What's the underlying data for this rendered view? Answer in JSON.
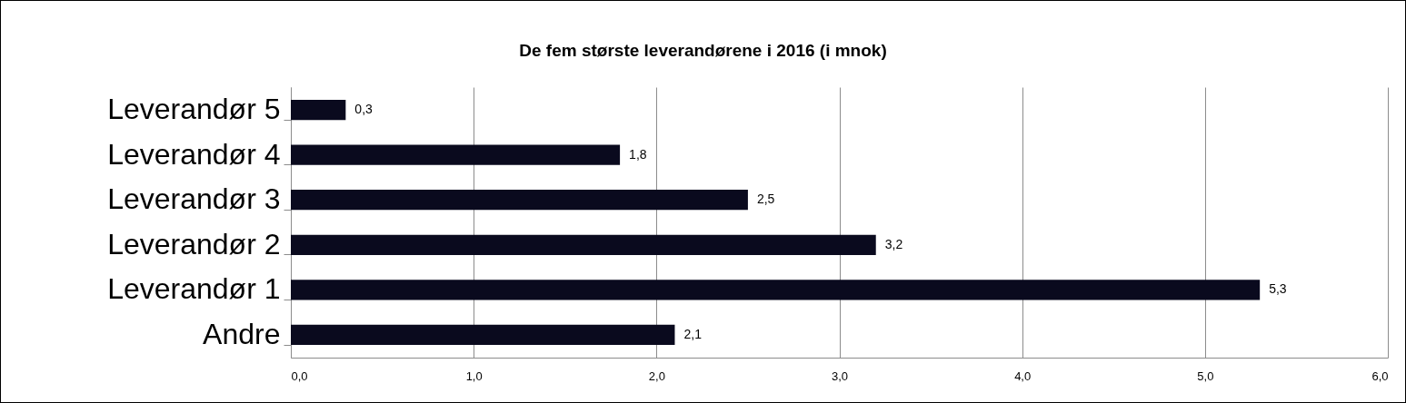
{
  "chart_data": {
    "type": "bar",
    "orientation": "horizontal",
    "title": "De fem største leverandørene i 2016 (i mnok)",
    "categories": [
      "Leverandør 5",
      "Leverandør 4",
      "Leverandør 3",
      "Leverandør 2",
      "Leverandør 1",
      "Andre"
    ],
    "values": [
      0.3,
      1.8,
      2.5,
      3.2,
      5.3,
      2.1
    ],
    "value_labels": [
      "0,3",
      "1,8",
      "2,5",
      "3,2",
      "5,3",
      "2,1"
    ],
    "color": "#0a0a1e",
    "xlim": [
      0,
      6
    ],
    "xticks": [
      {
        "value": 0,
        "label": "0,0"
      },
      {
        "value": 1,
        "label": "1,0"
      },
      {
        "value": 2,
        "label": "2,0"
      },
      {
        "value": 3,
        "label": "3,0"
      },
      {
        "value": 4,
        "label": "4,0"
      },
      {
        "value": 5,
        "label": "5,0"
      },
      {
        "value": 6,
        "label": "6,0"
      }
    ],
    "grid": "x"
  }
}
